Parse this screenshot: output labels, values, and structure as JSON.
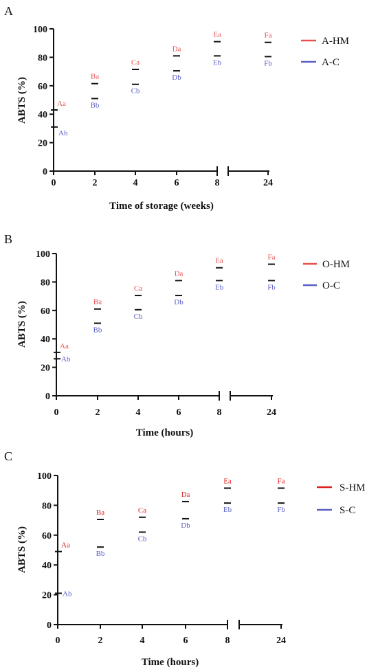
{
  "chart_data": [
    {
      "type": "scatter",
      "panel": "A",
      "xlabel": "Time of storage (weeks)",
      "ylabel": "ABTS (%)",
      "ylim": [
        0,
        100
      ],
      "yticks": [
        "0",
        "20",
        "40",
        "60",
        "80",
        "100"
      ],
      "x_positions": [
        0,
        2,
        4,
        6,
        8,
        24
      ],
      "x_tick_labels": [
        "0",
        "2",
        "4",
        "6",
        "8",
        "24"
      ],
      "axis_break": "between 8 and 24",
      "legend_position": "top-right",
      "series": [
        {
          "name": "A-HM",
          "color": "#e8504f",
          "values": [
            43,
            61.5,
            71.5,
            81,
            91,
            90.5
          ],
          "labels": [
            "Aa",
            "Ba",
            "Ca",
            "Da",
            "Ea",
            "Fa"
          ]
        },
        {
          "name": "A-C",
          "color": "#5b5fc7",
          "values": [
            31,
            51,
            61,
            70.5,
            81,
            80.5
          ],
          "labels": [
            "Ab",
            "Bb",
            "Cb",
            "Db",
            "Eb",
            "Fb"
          ]
        }
      ]
    },
    {
      "type": "scatter",
      "panel": "B",
      "xlabel": "Time (hours)",
      "ylabel": "ABTS (%)",
      "ylim": [
        0,
        100
      ],
      "yticks": [
        "0",
        "20",
        "40",
        "60",
        "80",
        "100"
      ],
      "x_positions": [
        0,
        2,
        4,
        6,
        8,
        24
      ],
      "x_tick_labels": [
        "0",
        "2",
        "4",
        "6",
        "8",
        "24"
      ],
      "axis_break": "between 8 and 24",
      "legend_position": "top-right",
      "series": [
        {
          "name": "O-HM",
          "color": "#e8504f",
          "values": [
            30.5,
            61,
            70.5,
            81,
            90,
            92.5
          ],
          "labels": [
            "Aa",
            "Ba",
            "Ca",
            "Da",
            "Ea",
            "Fa"
          ]
        },
        {
          "name": "O-C",
          "color": "#5b5fc7",
          "values": [
            26,
            51,
            60.5,
            70.5,
            81,
            81
          ],
          "labels": [
            "Ab",
            "Bb",
            "Cb",
            "Db",
            "Eb",
            "Fb"
          ]
        }
      ]
    },
    {
      "type": "scatter",
      "panel": "C",
      "xlabel": "Time (hours)",
      "ylabel": "ABTS (%)",
      "ylim": [
        0,
        100
      ],
      "yticks": [
        "0",
        "20",
        "40",
        "60",
        "80",
        "100"
      ],
      "x_positions": [
        0,
        2,
        4,
        6,
        8,
        24
      ],
      "x_tick_labels": [
        "0",
        "2",
        "4",
        "6",
        "8",
        "24"
      ],
      "axis_break": "between 8 and 24",
      "legend_position": "top-right",
      "series": [
        {
          "name": "S-HM",
          "color": "#e02020",
          "values": [
            49,
            70.5,
            72,
            82.5,
            91.5,
            91.5
          ],
          "labels": [
            "Aa",
            "Ba",
            "Ca",
            "Da",
            "Ea",
            "Fa"
          ]
        },
        {
          "name": "S-C",
          "color": "#5b5fc7",
          "values": [
            21,
            52,
            62,
            71,
            81.5,
            81.5
          ],
          "labels": [
            "Ab",
            "Bb",
            "Cb",
            "Db",
            "Eb",
            "Fb"
          ]
        }
      ]
    }
  ]
}
